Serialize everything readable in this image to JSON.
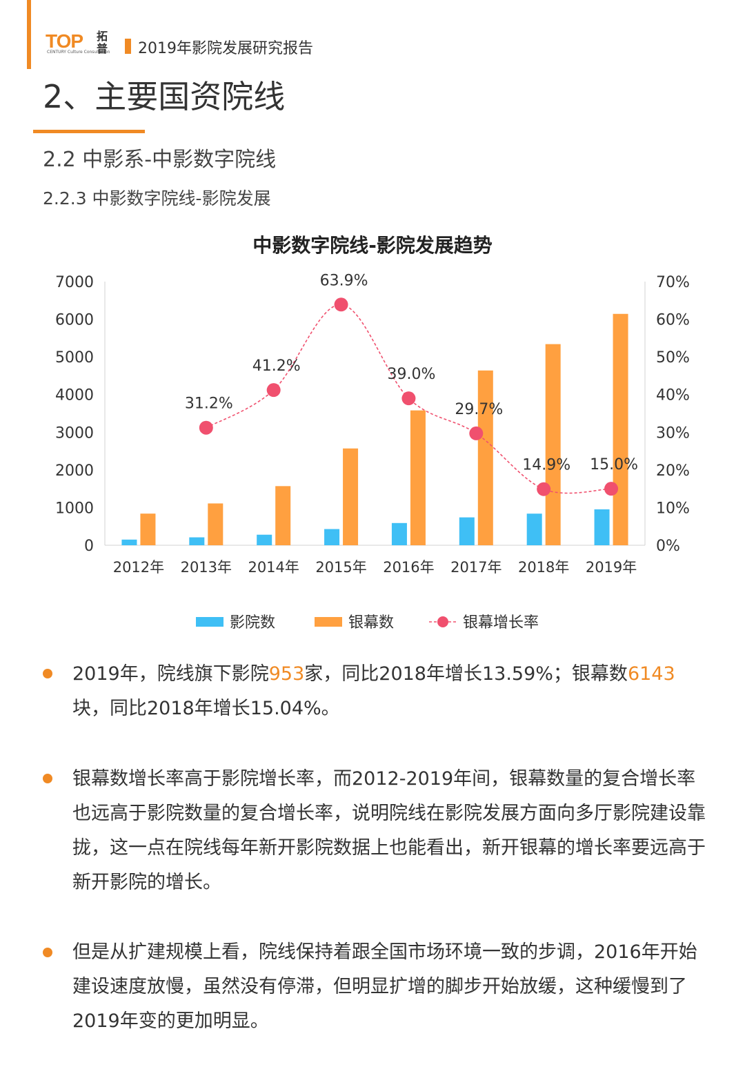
{
  "header": {
    "logo_top": "TOP",
    "logo_sub": "CENTURY Culture Consultation",
    "logo_cn": "拓普",
    "report_title": "2019年影院发展研究报告"
  },
  "section": {
    "title": "2、主要国资院线",
    "sub1": "2.2 中影系-中影数字院线",
    "sub2": "2.2.3 中影数字院线-影院发展"
  },
  "chart_data": {
    "type": "bar",
    "title": "中影数字院线-影院发展趋势",
    "categories": [
      "2012年",
      "2013年",
      "2014年",
      "2015年",
      "2016年",
      "2017年",
      "2018年",
      "2019年"
    ],
    "series": [
      {
        "name": "影院数",
        "type": "bar",
        "axis": "left",
        "color": "#3fbff5",
        "values": [
          150,
          210,
          280,
          430,
          590,
          740,
          839,
          953
        ]
      },
      {
        "name": "银幕数",
        "type": "bar",
        "axis": "left",
        "color": "#ffa040",
        "values": [
          840,
          1110,
          1570,
          2570,
          3580,
          4640,
          5340,
          6143
        ]
      },
      {
        "name": "银幕增长率",
        "type": "line",
        "axis": "right",
        "color": "#f0506e",
        "values": [
          null,
          31.2,
          41.2,
          63.9,
          39.0,
          29.7,
          14.9,
          15.0
        ],
        "labels": [
          "",
          "31.2%",
          "41.2%",
          "63.9%",
          "39.0%",
          "29.7%",
          "14.9%",
          "15.0%"
        ]
      }
    ],
    "y_left": {
      "min": 0,
      "max": 7000,
      "ticks": [
        "0",
        "1000",
        "2000",
        "3000",
        "4000",
        "5000",
        "6000",
        "7000"
      ]
    },
    "y_right": {
      "min": 0,
      "max": 70,
      "ticks": [
        "0%",
        "10%",
        "20%",
        "30%",
        "40%",
        "50%",
        "60%",
        "70%"
      ]
    },
    "legend_position": "bottom",
    "grid": false
  },
  "bullets": [
    {
      "parts": [
        {
          "text": "2019年，院线旗下影院"
        },
        {
          "text": "953",
          "highlight": true
        },
        {
          "text": "家，同比2018年增长13.59%；银幕数"
        },
        {
          "text": "6143",
          "highlight": true
        },
        {
          "text": "块，同比2018年增长15.04%。"
        }
      ]
    },
    {
      "parts": [
        {
          "text": "银幕数增长率高于影院增长率，而2012-2019年间，银幕数量的复合增长率也远高于影院数量的复合增长率，说明院线在影院发展方面向多厅影院建设靠拢，这一点在院线每年新开影院数据上也能看出，新开银幕的增长率要远高于新开影院的增长。"
        }
      ]
    },
    {
      "parts": [
        {
          "text": "但是从扩建规模上看，院线保持着跟全国市场环境一致的步调，2016年开始建设速度放慢，虽然没有停滞，但明显扩增的脚步开始放缓，这种缓慢到了2019年变的更加明显。"
        }
      ]
    }
  ]
}
